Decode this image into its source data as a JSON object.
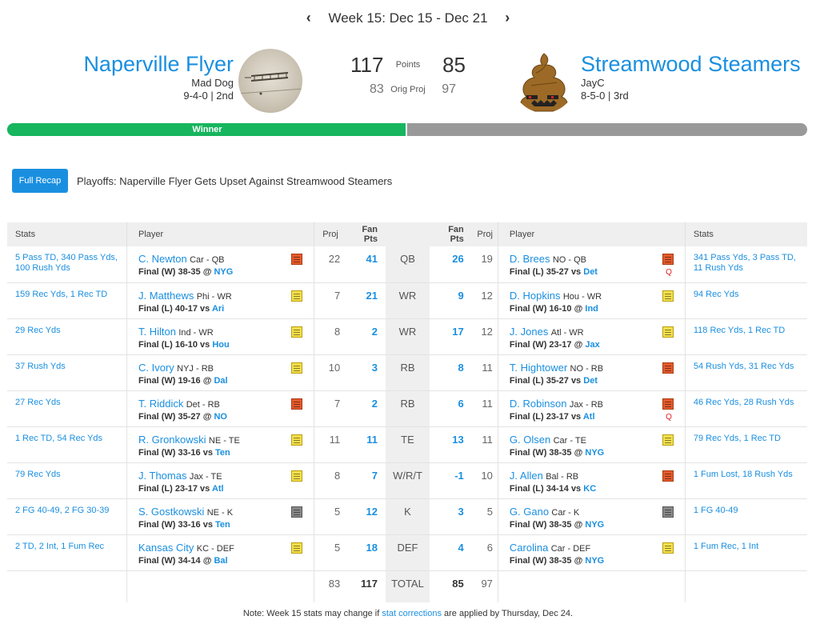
{
  "week": {
    "label": "Week 15: Dec 15 - Dec 21",
    "prev": "‹",
    "next": "›"
  },
  "home": {
    "name": "Naperville Flyer",
    "owner": "Mad Dog",
    "record": "9-4-0 | 2nd",
    "points": "117",
    "orig_proj": "83"
  },
  "away": {
    "name": "Streamwood Steamers",
    "owner": "JayC",
    "record": "8-5-0 | 3rd",
    "points": "85",
    "orig_proj": "97"
  },
  "labels": {
    "points": "Points",
    "orig_proj": "Orig Proj"
  },
  "result": {
    "text": "Winner",
    "home_share": 0.5
  },
  "recap": {
    "button": "Full Recap",
    "headline": "Playoffs: Naperville Flyer Gets Upset Against Streamwood Steamers"
  },
  "columns": {
    "stats": "Stats",
    "player": "Player",
    "proj": "Proj",
    "fan_pts": "Fan Pts"
  },
  "rows": [
    {
      "pos": "QB",
      "left": {
        "stats": "5 Pass TD, 340 Pass Yds, 100 Rush Yds",
        "name": "C. Newton",
        "team": "Car - QB",
        "game": "Final (W) 38-35 @",
        "opp": "NYG",
        "proj": "22",
        "pts": "41",
        "note": "red"
      },
      "right": {
        "stats": "341 Pass Yds, 3 Pass TD, 11 Rush Yds",
        "name": "D. Brees",
        "team": "NO - QB",
        "game": "Final (L) 35-27 vs",
        "opp": "Det",
        "proj": "19",
        "pts": "26",
        "note": "red",
        "flag": "Q"
      }
    },
    {
      "pos": "WR",
      "left": {
        "stats": "159 Rec Yds, 1 Rec TD",
        "name": "J. Matthews",
        "team": "Phi - WR",
        "game": "Final (L) 40-17 vs",
        "opp": "Ari",
        "proj": "7",
        "pts": "21",
        "note": "yellow"
      },
      "right": {
        "stats": "94 Rec Yds",
        "name": "D. Hopkins",
        "team": "Hou - WR",
        "game": "Final (W) 16-10 @",
        "opp": "Ind",
        "proj": "12",
        "pts": "9",
        "note": "yellow"
      }
    },
    {
      "pos": "WR",
      "left": {
        "stats": "29 Rec Yds",
        "name": "T. Hilton",
        "team": "Ind - WR",
        "game": "Final (L) 16-10 vs",
        "opp": "Hou",
        "proj": "8",
        "pts": "2",
        "note": "yellow"
      },
      "right": {
        "stats": "118 Rec Yds, 1 Rec TD",
        "name": "J. Jones",
        "team": "Atl - WR",
        "game": "Final (W) 23-17 @",
        "opp": "Jax",
        "proj": "12",
        "pts": "17",
        "note": "yellow"
      }
    },
    {
      "pos": "RB",
      "left": {
        "stats": "37 Rush Yds",
        "name": "C. Ivory",
        "team": "NYJ - RB",
        "game": "Final (W) 19-16 @",
        "opp": "Dal",
        "proj": "10",
        "pts": "3",
        "note": "yellow"
      },
      "right": {
        "stats": "54 Rush Yds, 31 Rec Yds",
        "name": "T. Hightower",
        "team": "NO - RB",
        "game": "Final (L) 35-27 vs",
        "opp": "Det",
        "proj": "11",
        "pts": "8",
        "note": "red"
      }
    },
    {
      "pos": "RB",
      "left": {
        "stats": "27 Rec Yds",
        "name": "T. Riddick",
        "team": "Det - RB",
        "game": "Final (W) 35-27 @",
        "opp": "NO",
        "proj": "7",
        "pts": "2",
        "note": "red"
      },
      "right": {
        "stats": "46 Rec Yds, 28 Rush Yds",
        "name": "D. Robinson",
        "team": "Jax - RB",
        "game": "Final (L) 23-17 vs",
        "opp": "Atl",
        "proj": "11",
        "pts": "6",
        "note": "red",
        "flag": "Q"
      }
    },
    {
      "pos": "TE",
      "left": {
        "stats": "1 Rec TD, 54 Rec Yds",
        "name": "R. Gronkowski",
        "team": "NE - TE",
        "game": "Final (W) 33-16 vs",
        "opp": "Ten",
        "proj": "11",
        "pts": "11",
        "note": "yellow"
      },
      "right": {
        "stats": "79 Rec Yds, 1 Rec TD",
        "name": "G. Olsen",
        "team": "Car - TE",
        "game": "Final (W) 38-35 @",
        "opp": "NYG",
        "proj": "11",
        "pts": "13",
        "note": "yellow"
      }
    },
    {
      "pos": "W/R/T",
      "left": {
        "stats": "79 Rec Yds",
        "name": "J. Thomas",
        "team": "Jax - TE",
        "game": "Final (L) 23-17 vs",
        "opp": "Atl",
        "proj": "8",
        "pts": "7",
        "note": "yellow"
      },
      "right": {
        "stats": "1 Fum Lost, 18 Rush Yds",
        "name": "J. Allen",
        "team": "Bal - RB",
        "game": "Final (L) 34-14 vs",
        "opp": "KC",
        "proj": "10",
        "pts": "-1",
        "note": "red"
      }
    },
    {
      "pos": "K",
      "left": {
        "stats": "2 FG 40-49, 2 FG 30-39",
        "name": "S. Gostkowski",
        "team": "NE - K",
        "game": "Final (W) 33-16 vs",
        "opp": "Ten",
        "proj": "5",
        "pts": "12",
        "note": "gray"
      },
      "right": {
        "stats": "1 FG 40-49",
        "name": "G. Gano",
        "team": "Car - K",
        "game": "Final (W) 38-35 @",
        "opp": "NYG",
        "proj": "5",
        "pts": "3",
        "note": "gray"
      }
    },
    {
      "pos": "DEF",
      "left": {
        "stats": "2 TD, 2 Int, 1 Fum Rec",
        "name": "Kansas City",
        "team": "KC - DEF",
        "game": "Final (W) 34-14 @",
        "opp": "Bal",
        "proj": "5",
        "pts": "18",
        "note": "yellow"
      },
      "right": {
        "stats": "1 Fum Rec, 1 Int",
        "name": "Carolina",
        "team": "Car - DEF",
        "game": "Final (W) 38-35 @",
        "opp": "NYG",
        "proj": "6",
        "pts": "4",
        "note": "yellow"
      }
    }
  ],
  "totals": {
    "label": "TOTAL",
    "left_proj": "83",
    "left_pts": "117",
    "right_pts": "85",
    "right_proj": "97"
  },
  "footnote": {
    "before": "Note: Week 15 stats may change if",
    "link": "stat corrections",
    "after": "are applied by Thursday, Dec 24."
  },
  "colors": {
    "accent": "#1a8fe0",
    "winner": "#16b55e",
    "loser": "#999999"
  }
}
